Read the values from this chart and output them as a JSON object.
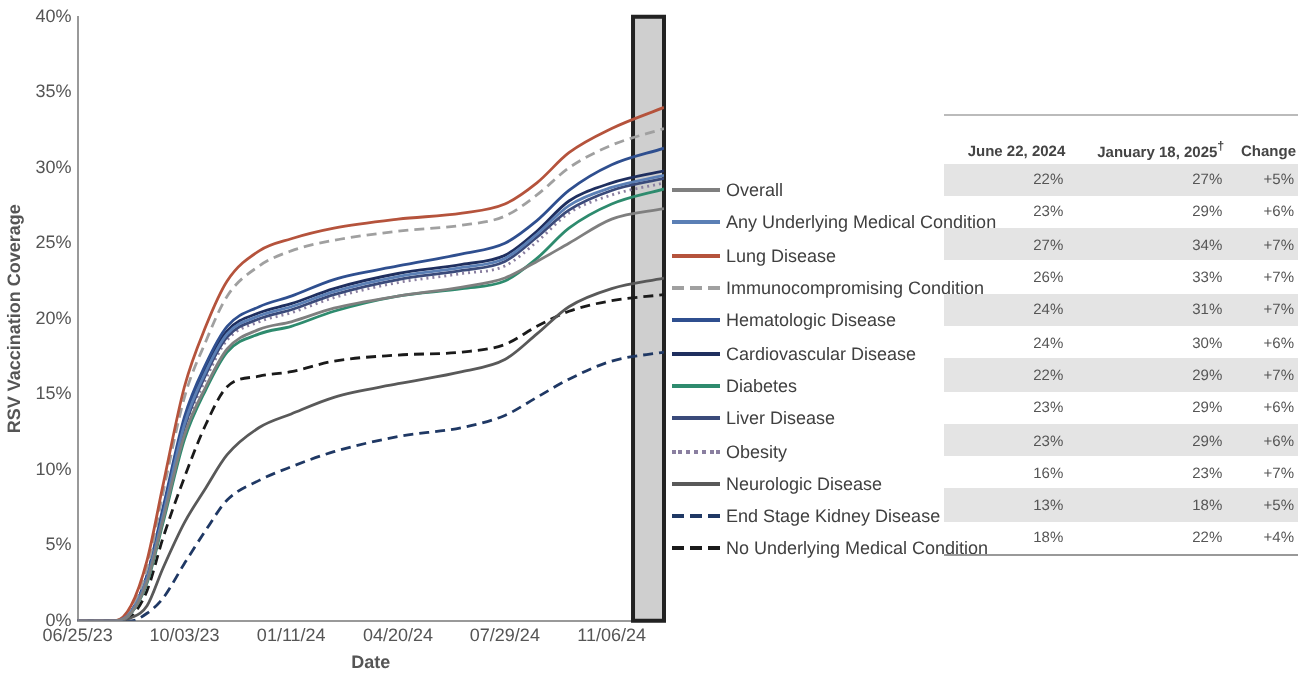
{
  "chart_data": [
    {
      "type": "line",
      "xlabel": "Date",
      "ylabel": "RSV Vaccination Coverage",
      "legend": "right",
      "x": [
        "2023-06-25",
        "2023-07-30",
        "2023-08-14",
        "2023-08-29",
        "2023-09-13",
        "2023-10-03",
        "2023-10-23",
        "2023-11-12",
        "2023-12-12",
        "2024-01-11",
        "2024-02-20",
        "2024-04-20",
        "2024-06-19",
        "2024-07-29",
        "2024-08-28",
        "2024-09-27",
        "2024-11-06",
        "2024-12-25"
      ],
      "xlim": [
        "2023-06-25",
        "2024-12-25"
      ],
      "xticks": [
        {
          "value": "2023-06-25",
          "label": "06/25/23"
        },
        {
          "value": "2023-10-03",
          "label": "10/03/23"
        },
        {
          "value": "2024-01-11",
          "label": "01/11/24"
        },
        {
          "value": "2024-04-20",
          "label": "04/20/24"
        },
        {
          "value": "2024-07-29",
          "label": "07/29/24"
        },
        {
          "value": "2024-11-06",
          "label": "11/06/24"
        }
      ],
      "ylim": [
        0,
        40
      ],
      "yticks": [
        {
          "value": 0,
          "label": "0%"
        },
        {
          "value": 5,
          "label": "5%"
        },
        {
          "value": 10,
          "label": "10%"
        },
        {
          "value": 15,
          "label": "15%"
        },
        {
          "value": 20,
          "label": "20%"
        },
        {
          "value": 25,
          "label": "25%"
        },
        {
          "value": 30,
          "label": "30%"
        },
        {
          "value": 35,
          "label": "35%"
        },
        {
          "value": 40,
          "label": "40%"
        }
      ],
      "bands": [
        {
          "axis": "x",
          "from": "2024-11-26",
          "to": "2024-12-25",
          "color": "#cfcfcf"
        }
      ],
      "series": [
        {
          "name": "Overall",
          "color": "#7f7f7f",
          "line_style": "solid",
          "values": [
            0,
            0,
            0.5,
            2.6,
            6.7,
            12.3,
            15.5,
            18,
            19.3,
            19.8,
            20.7,
            21.5,
            22.1,
            22.7,
            23.8,
            25,
            26.6,
            27.3
          ]
        },
        {
          "name": "Any Underlying Medical Condition",
          "color": "#5b7fb5",
          "line_style": "solid",
          "values": [
            0,
            0,
            0.6,
            2.8,
            7,
            13,
            16.5,
            19,
            20.2,
            20.8,
            21.8,
            22.8,
            23.4,
            24,
            25.6,
            27.5,
            28.7,
            29.5
          ]
        },
        {
          "name": "Lung Disease",
          "color": "#b5533c",
          "line_style": "solid",
          "values": [
            0,
            0,
            1,
            4,
            9,
            15.5,
            19.5,
            22.5,
            24.5,
            25.3,
            26,
            26.6,
            27,
            27.6,
            29,
            31,
            32.6,
            34
          ]
        },
        {
          "name": "Immunocompromising Condition",
          "color": "#a0a0a0",
          "line_style": "dashed",
          "values": [
            0,
            0,
            0.8,
            3.5,
            8.5,
            14.8,
            18.5,
            21.5,
            23.5,
            24.5,
            25.2,
            25.8,
            26.2,
            26.8,
            28.2,
            30,
            31.5,
            32.6
          ]
        },
        {
          "name": "Hematologic Disease",
          "color": "#2f4f8f",
          "line_style": "solid",
          "values": [
            0,
            0,
            0.6,
            3,
            7.5,
            13.5,
            17,
            19.5,
            20.8,
            21.5,
            22.6,
            23.5,
            24.3,
            25,
            26.5,
            28.5,
            30.2,
            31.3
          ]
        },
        {
          "name": "Cardiovascular Disease",
          "color": "#1f2f5f",
          "line_style": "solid",
          "values": [
            0,
            0,
            0.6,
            3,
            7.3,
            13.2,
            16.8,
            19.2,
            20.4,
            21,
            22,
            23,
            23.6,
            24.2,
            25.8,
            27.8,
            29,
            29.8
          ]
        },
        {
          "name": "Diabetes",
          "color": "#2e8b6e",
          "line_style": "solid",
          "values": [
            0,
            0,
            0.5,
            2.5,
            6.5,
            12,
            15.3,
            17.8,
            19,
            19.5,
            20.5,
            21.5,
            22,
            22.5,
            24,
            26,
            27.6,
            28.6
          ]
        },
        {
          "name": "Liver Disease",
          "color": "#3a4a7a",
          "line_style": "solid",
          "values": [
            0,
            0,
            0.5,
            2.8,
            7,
            12.8,
            16.3,
            18.8,
            20,
            20.6,
            21.6,
            22.6,
            23.2,
            23.8,
            25.4,
            27.2,
            28.5,
            29.3
          ]
        },
        {
          "name": "Obesity",
          "color": "#8a7fa0",
          "line_style": "dotted",
          "values": [
            0,
            0,
            0.5,
            2.7,
            6.8,
            12.6,
            16,
            18.6,
            19.8,
            20.4,
            21.4,
            22.4,
            23,
            23.5,
            25.1,
            27,
            28.2,
            29
          ]
        },
        {
          "name": "Neurologic Disease",
          "color": "#595959",
          "line_style": "solid",
          "values": [
            0,
            0,
            0.2,
            1,
            3.5,
            6.5,
            8.8,
            11,
            12.8,
            13.7,
            14.8,
            15.7,
            16.5,
            17.3,
            19,
            20.8,
            22,
            22.7
          ]
        },
        {
          "name": "End Stage Kidney Disease",
          "color": "#1f3864",
          "line_style": "dashed",
          "values": [
            0,
            0,
            0,
            0.5,
            1.5,
            3.8,
            6,
            8,
            9.3,
            10.2,
            11.2,
            12.2,
            12.8,
            13.6,
            14.8,
            16,
            17.2,
            17.8
          ]
        },
        {
          "name": "No Underlying Medical Condition",
          "color": "#1a1a1a",
          "line_style": "dashed",
          "values": [
            0,
            0,
            0.3,
            2,
            5.5,
            9.5,
            13,
            15.5,
            16.2,
            16.5,
            17.2,
            17.6,
            17.8,
            18.3,
            19.5,
            20.5,
            21.2,
            21.6
          ]
        }
      ]
    },
    {
      "type": "other",
      "categories": [
        "June 22, 2024",
        "January 18, 2025$^{†}$",
        "Change"
      ],
      "cell_labels": [
        [
          "22%",
          "27%",
          "+5%"
        ],
        [
          "23%",
          "29%",
          "+6%"
        ],
        [
          "27%",
          "34%",
          "+7%"
        ],
        [
          "26%",
          "33%",
          "+7%"
        ],
        [
          "24%",
          "31%",
          "+7%"
        ],
        [
          "24%",
          "30%",
          "+6%"
        ],
        [
          "22%",
          "29%",
          "+7%"
        ],
        [
          "23%",
          "29%",
          "+6%"
        ],
        [
          "23%",
          "29%",
          "+6%"
        ],
        [
          "16%",
          "23%",
          "+7%"
        ],
        [
          "13%",
          "18%",
          "+5%"
        ],
        [
          "18%",
          "22%",
          "+4%"
        ]
      ]
    }
  ]
}
